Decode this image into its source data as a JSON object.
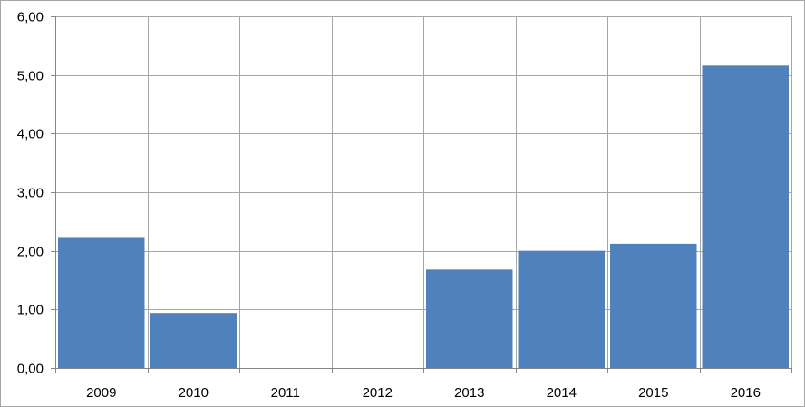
{
  "chart_data": {
    "type": "bar",
    "title": "",
    "xlabel": "",
    "ylabel": "",
    "categories": [
      "2009",
      "2010",
      "2011",
      "2012",
      "2013",
      "2014",
      "2015",
      "2016"
    ],
    "values": [
      2.22,
      0.94,
      0,
      0,
      1.68,
      2.0,
      2.12,
      5.16
    ],
    "ylim": [
      0,
      6
    ],
    "y_ticks": [
      "0,00",
      "1,00",
      "2,00",
      "3,00",
      "4,00",
      "5,00",
      "6,00"
    ],
    "grid": true,
    "legend": "none",
    "bar_color": "#4f81bd",
    "grid_color": "#a6a6a6",
    "axis_color": "#868686"
  }
}
